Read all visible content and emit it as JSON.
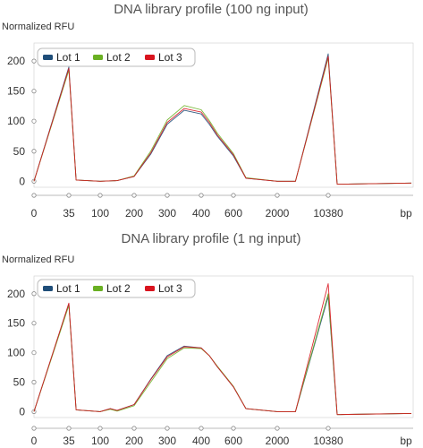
{
  "chart_data": [
    {
      "type": "line",
      "title": "DNA library profile (100 ng input)",
      "ylabel": "Normalized RFU",
      "xlabel": "bp",
      "x_ticks": [
        "0",
        "35",
        "100",
        "200",
        "300",
        "400",
        "600",
        "2000",
        "10380"
      ],
      "y_ticks": [
        "0",
        "50",
        "100",
        "150",
        "200"
      ],
      "ylim": [
        -10,
        230
      ],
      "grid": false,
      "legend_position": "top-left",
      "series": [
        {
          "name": "Lot 1",
          "color": "#1f4e79",
          "x": [
            0,
            35,
            50,
            100,
            150,
            200,
            250,
            300,
            350,
            400,
            450,
            500,
            600,
            1000,
            2000,
            5000,
            10380,
            10800
          ],
          "y": [
            0,
            190,
            2,
            0,
            1,
            8,
            45,
            95,
            118,
            112,
            95,
            75,
            42,
            5,
            0,
            0,
            212,
            -5
          ]
        },
        {
          "name": "Lot 2",
          "color": "#6ab023",
          "x": [
            0,
            35,
            50,
            100,
            150,
            200,
            250,
            300,
            350,
            400,
            450,
            500,
            600,
            1000,
            2000,
            5000,
            10380,
            10800
          ],
          "y": [
            0,
            185,
            2,
            0,
            1,
            9,
            50,
            102,
            126,
            119,
            101,
            80,
            46,
            6,
            0,
            0,
            205,
            -5
          ]
        },
        {
          "name": "Lot 3",
          "color": "#d9141e",
          "x": [
            0,
            35,
            50,
            100,
            150,
            200,
            250,
            300,
            350,
            400,
            450,
            500,
            600,
            1000,
            2000,
            5000,
            10380,
            10800
          ],
          "y": [
            0,
            188,
            2,
            0,
            1,
            8,
            47,
            98,
            121,
            115,
            98,
            77,
            44,
            5,
            0,
            0,
            208,
            -5
          ]
        }
      ]
    },
    {
      "type": "line",
      "title": "DNA library profile (1 ng input)",
      "ylabel": "Normalized RFU",
      "xlabel": "bp",
      "x_ticks": [
        "0",
        "35",
        "100",
        "200",
        "300",
        "400",
        "600",
        "2000",
        "10380"
      ],
      "y_ticks": [
        "0",
        "50",
        "100",
        "150",
        "200"
      ],
      "ylim": [
        -10,
        230
      ],
      "grid": false,
      "legend_position": "top-left",
      "series": [
        {
          "name": "Lot 1",
          "color": "#1f4e79",
          "x": [
            0,
            35,
            50,
            100,
            130,
            150,
            200,
            250,
            300,
            350,
            400,
            450,
            500,
            600,
            1000,
            2000,
            5000,
            10380,
            10800
          ],
          "y": [
            0,
            183,
            3,
            0,
            5,
            2,
            12,
            55,
            95,
            111,
            108,
            95,
            76,
            42,
            5,
            0,
            0,
            195,
            -5
          ]
        },
        {
          "name": "Lot 2",
          "color": "#6ab023",
          "x": [
            0,
            35,
            50,
            100,
            130,
            150,
            200,
            250,
            300,
            350,
            400,
            450,
            500,
            600,
            1000,
            2000,
            5000,
            10380,
            10800
          ],
          "y": [
            0,
            180,
            3,
            0,
            4,
            1,
            10,
            50,
            90,
            108,
            107,
            95,
            77,
            43,
            5,
            0,
            0,
            200,
            -5
          ]
        },
        {
          "name": "Lot 3",
          "color": "#d9141e",
          "x": [
            0,
            35,
            50,
            100,
            130,
            150,
            200,
            250,
            300,
            350,
            400,
            450,
            500,
            600,
            1000,
            2000,
            5000,
            10380,
            10800
          ],
          "y": [
            0,
            184,
            3,
            0,
            5,
            2,
            12,
            54,
            93,
            110,
            108,
            95,
            76,
            42,
            5,
            0,
            0,
            217,
            -5
          ]
        }
      ]
    }
  ]
}
